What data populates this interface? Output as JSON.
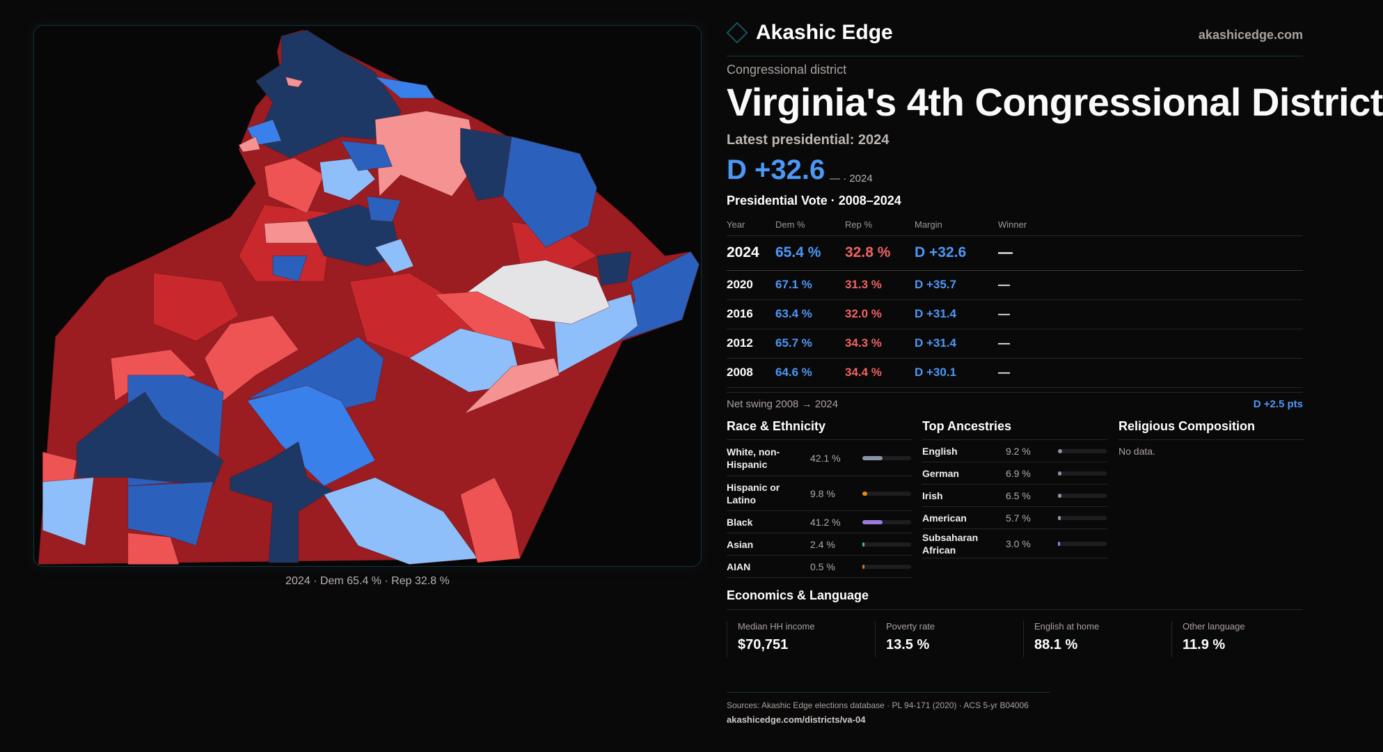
{
  "brand": {
    "name": "Akashic Edge",
    "site": "akashicedge.com",
    "logo_icon": "diamond-icon"
  },
  "map": {
    "caption": "2024 · Dem 65.4 % · Rep 32.8 %",
    "colors": {
      "safe_r": "#9b1c21",
      "lean_r": "#c9282d",
      "tilt_r": "#ef5454",
      "weak_r": "#f59393",
      "tie": "#e4e4e6",
      "weak_d": "#8ebffa",
      "tilt_d": "#3a80ea",
      "lean_d": "#2b60bd",
      "safe_d": "#1d3864"
    }
  },
  "header": {
    "kicker": "Congressional district",
    "title": "Virginia's 4th Congressional District",
    "latest": "Latest presidential: 2024",
    "margin": "D +32.6",
    "margin_sub": "— · 2024"
  },
  "presidential": {
    "heading": "Presidential Vote · 2008–2024",
    "columns": [
      "Year",
      "Dem %",
      "Rep %",
      "Margin",
      "Winner"
    ],
    "rows": [
      {
        "year": "2024",
        "dem": "65.4 %",
        "rep": "32.8 %",
        "margin": "D +32.6",
        "winner": "—"
      },
      {
        "year": "2020",
        "dem": "67.1 %",
        "rep": "31.3 %",
        "margin": "D +35.7",
        "winner": "—"
      },
      {
        "year": "2016",
        "dem": "63.4 %",
        "rep": "32.0 %",
        "margin": "D +31.4",
        "winner": "—"
      },
      {
        "year": "2012",
        "dem": "65.7 %",
        "rep": "34.3 %",
        "margin": "D +31.4",
        "winner": "—"
      },
      {
        "year": "2008",
        "dem": "64.6 %",
        "rep": "34.4 %",
        "margin": "D +30.1",
        "winner": "—"
      }
    ],
    "swing_label": "Net swing 2008 → 2024",
    "swing_value": "D +2.5 pts"
  },
  "race": {
    "heading": "Race & Ethnicity",
    "items": [
      {
        "label": "White, non-Hispanic",
        "pct": "42.1 %",
        "value": 42.1,
        "color": "#8a94a6"
      },
      {
        "label": "Hispanic or Latino",
        "pct": "9.8 %",
        "value": 9.8,
        "color": "#e08c10"
      },
      {
        "label": "Black",
        "pct": "41.2 %",
        "value": 41.2,
        "color": "#9b7ae0"
      },
      {
        "label": "Asian",
        "pct": "2.4 %",
        "value": 2.4,
        "color": "#2fc49a"
      },
      {
        "label": "AIAN",
        "pct": "0.5 %",
        "value": 0.5,
        "color": "#d07020"
      }
    ]
  },
  "ancestry": {
    "heading": "Top Ancestries",
    "items": [
      {
        "label": "English",
        "pct": "9.2 %",
        "value": 9.2,
        "color": "#8a94a6"
      },
      {
        "label": "German",
        "pct": "6.9 %",
        "value": 6.9,
        "color": "#8a94a6"
      },
      {
        "label": "Irish",
        "pct": "6.5 %",
        "value": 6.5,
        "color": "#8a94a6"
      },
      {
        "label": "American",
        "pct": "5.7 %",
        "value": 5.7,
        "color": "#8a94a6"
      },
      {
        "label": "Subsaharan African",
        "pct": "3.0 %",
        "value": 3.0,
        "color": "#9b7ae0"
      }
    ]
  },
  "religion": {
    "heading": "Religious Composition",
    "empty": "No data."
  },
  "economics": {
    "heading": "Economics & Language",
    "stats": [
      {
        "label": "Median HH income",
        "value": "$70,751"
      },
      {
        "label": "Poverty rate",
        "value": "13.5 %"
      },
      {
        "label": "English at home",
        "value": "88.1 %"
      },
      {
        "label": "Other language",
        "value": "11.9 %"
      }
    ]
  },
  "footer": {
    "sources": "Sources: Akashic Edge elections database · PL 94-171 (2020) · ACS 5-yr B04006",
    "url": "akashicedge.com/districts/va-04"
  }
}
